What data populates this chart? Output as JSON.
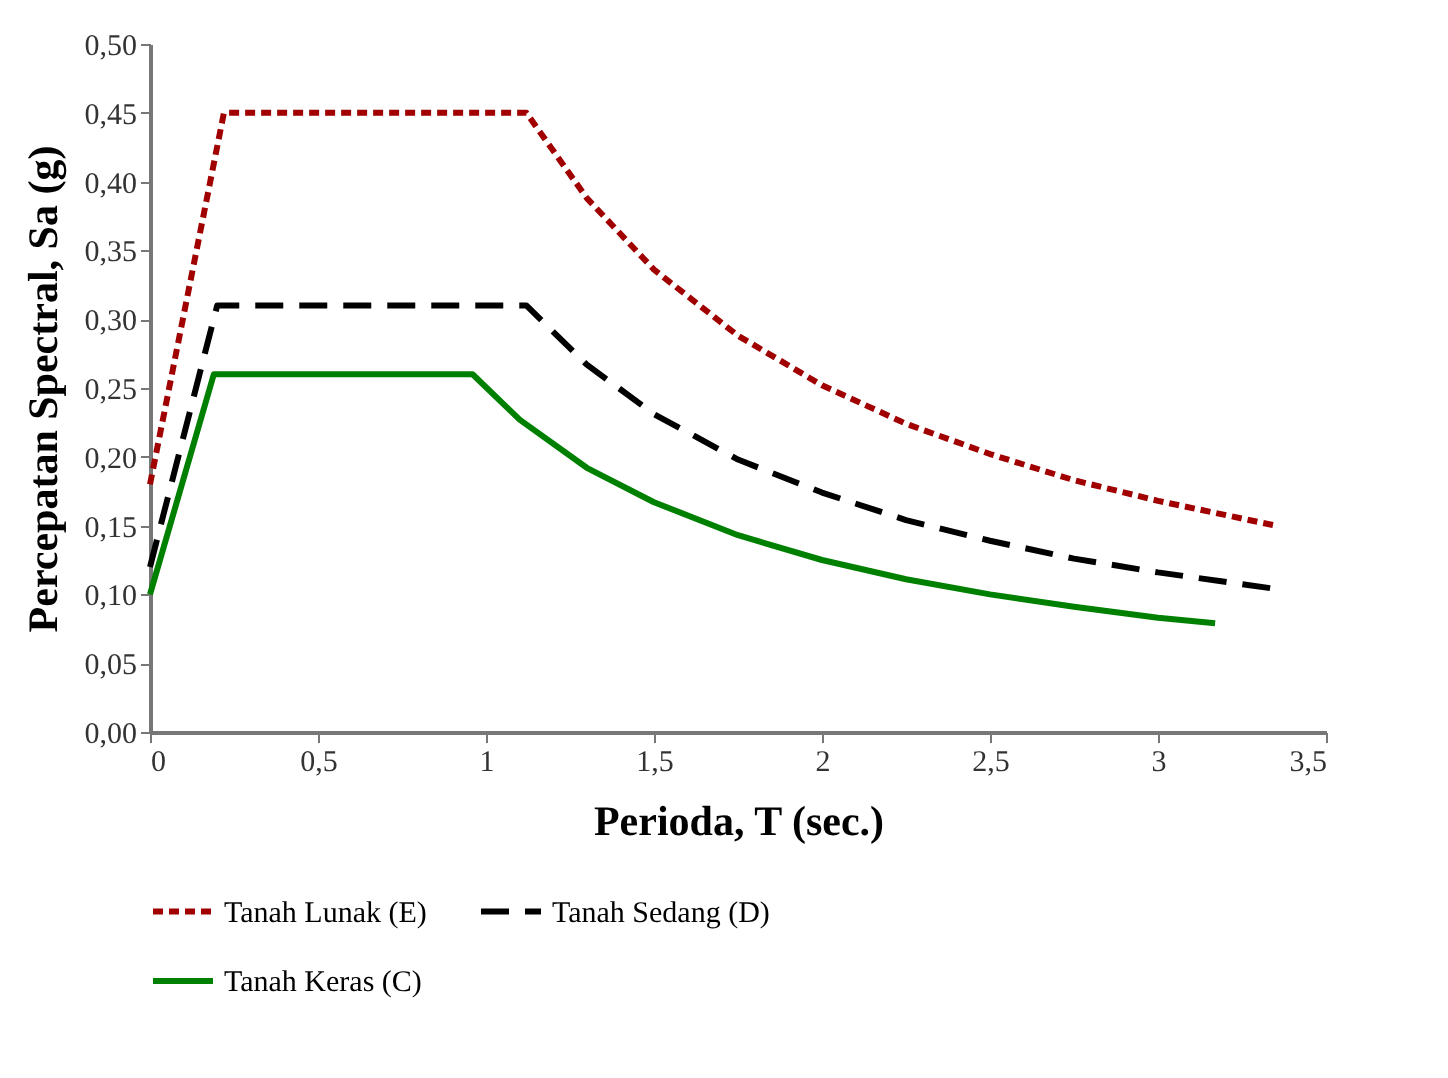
{
  "chart_data": {
    "type": "line",
    "xlabel": "Perioda, T (sec.)",
    "ylabel": "Percepatan Spectral, Sa (g)",
    "xlim": [
      0,
      3.5
    ],
    "xticks": [
      {
        "value": 0,
        "label": "0"
      },
      {
        "value": 0.5,
        "label": "0,5"
      },
      {
        "value": 1,
        "label": "1"
      },
      {
        "value": 1.5,
        "label": "1,5"
      },
      {
        "value": 2,
        "label": "2"
      },
      {
        "value": 2.5,
        "label": "2,5"
      },
      {
        "value": 3,
        "label": "3"
      },
      {
        "value": 3.5,
        "label": "3,5"
      }
    ],
    "ylim": [
      0,
      0.5
    ],
    "yticks": [
      {
        "value": 0,
        "label": "0,00"
      },
      {
        "value": 0.05,
        "label": "0,05"
      },
      {
        "value": 0.1,
        "label": "0,10"
      },
      {
        "value": 0.15,
        "label": "0,15"
      },
      {
        "value": 0.2,
        "label": "0,20"
      },
      {
        "value": 0.25,
        "label": "0,25"
      },
      {
        "value": 0.3,
        "label": "0,30"
      },
      {
        "value": 0.35,
        "label": "0,35"
      },
      {
        "value": 0.4,
        "label": "0,40"
      },
      {
        "value": 0.45,
        "label": "0,45"
      },
      {
        "value": 0.5,
        "label": "0,50"
      }
    ],
    "grid": false,
    "legend": "bottom",
    "marker": "none",
    "series": [
      {
        "name": "Tanah Lunak (E)",
        "color": "#a00000",
        "line_style": "dotted",
        "x": [
          0,
          0.22,
          1.12,
          1.3,
          1.5,
          1.75,
          2,
          2.25,
          2.5,
          2.75,
          3,
          3.35
        ],
        "values": [
          0.18,
          0.45,
          0.45,
          0.388,
          0.336,
          0.288,
          0.252,
          0.224,
          0.202,
          0.183,
          0.168,
          0.15
        ]
      },
      {
        "name": "Tanah Sedang (D)",
        "color": "#000000",
        "line_style": "dashed",
        "x": [
          0,
          0.2,
          1.12,
          1.3,
          1.5,
          1.75,
          2,
          2.25,
          2.5,
          2.75,
          3,
          3.35
        ],
        "values": [
          0.12,
          0.31,
          0.31,
          0.267,
          0.231,
          0.198,
          0.174,
          0.154,
          0.139,
          0.126,
          0.116,
          0.104
        ]
      },
      {
        "name": "Tanah Keras (C)",
        "color": "#008000",
        "line_style": "solid",
        "x": [
          0,
          0.19,
          0.96,
          1.1,
          1.3,
          1.5,
          1.75,
          2,
          2.25,
          2.5,
          2.75,
          3,
          3.17
        ],
        "values": [
          0.1,
          0.26,
          0.26,
          0.227,
          0.192,
          0.167,
          0.143,
          0.125,
          0.111,
          0.1,
          0.091,
          0.083,
          0.079
        ]
      }
    ]
  }
}
